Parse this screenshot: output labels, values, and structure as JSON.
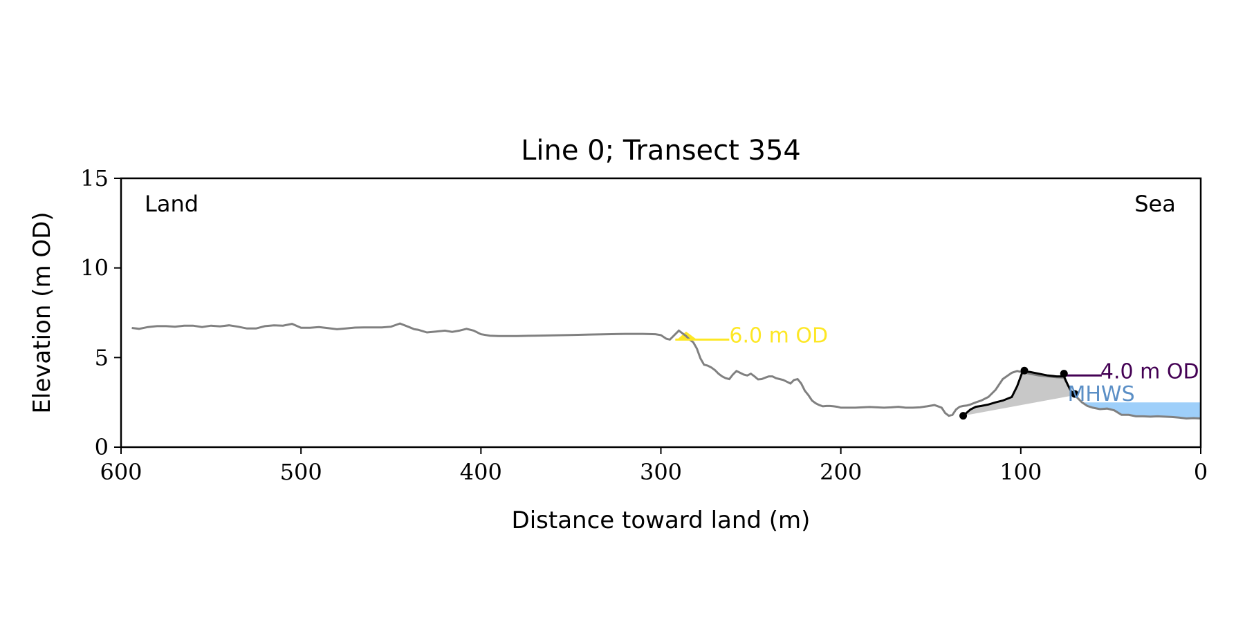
{
  "chart_data": {
    "type": "line",
    "title": "Line 0; Transect 354",
    "xlabel": "Distance toward land (m)",
    "ylabel": "Elevation (m OD)",
    "xlim": [
      600,
      0
    ],
    "ylim": [
      0,
      15
    ],
    "x_ticks": [
      600,
      500,
      400,
      300,
      200,
      100,
      0
    ],
    "y_ticks": [
      0,
      5,
      10,
      15
    ],
    "grid": false,
    "corner_labels": {
      "left": "Land",
      "right": "Sea"
    },
    "colors": {
      "profile": "#808080",
      "dune": "#000000",
      "dune_fill": "#c8c8c8",
      "upper_level": "#fde725",
      "lower_level": "#440154",
      "mhws": "#5b8fc6",
      "water": "#9ecffa"
    },
    "series": [
      {
        "kind": "profile",
        "x": [
          594,
          590,
          585,
          580,
          575,
          570,
          565,
          560,
          555,
          550,
          545,
          540,
          535,
          530,
          525,
          520,
          515,
          510,
          505,
          500,
          495,
          490,
          485,
          480,
          475,
          470,
          465,
          460,
          455,
          450,
          445,
          440,
          437,
          435,
          430,
          425,
          420,
          416,
          412,
          408,
          404,
          400,
          395,
          390,
          380,
          370,
          360,
          350,
          340,
          330,
          320,
          310,
          303,
          300,
          297,
          295,
          292,
          290,
          288,
          286,
          284,
          282,
          280,
          278,
          276,
          274,
          272,
          270,
          268,
          266,
          264,
          262,
          260,
          258,
          256,
          254,
          252,
          250,
          248,
          246,
          244,
          242,
          240,
          238,
          236,
          234,
          232,
          230,
          228,
          226,
          224,
          222,
          220,
          218,
          216,
          214,
          212,
          210,
          208,
          206,
          204,
          202,
          200,
          196,
          192,
          188,
          184,
          180,
          176,
          172,
          168,
          164,
          160,
          156,
          152,
          148,
          144,
          142,
          140,
          138,
          136,
          134,
          132,
          130,
          128,
          125,
          122,
          118,
          114,
          110,
          105,
          102,
          100,
          95,
          90,
          85,
          80,
          76,
          72,
          70,
          66,
          63,
          60,
          56,
          52,
          48,
          44,
          40,
          36,
          32,
          28,
          24,
          20,
          16,
          12,
          8,
          4,
          0
        ],
        "y": [
          6.65,
          6.6,
          6.7,
          6.75,
          6.75,
          6.72,
          6.78,
          6.78,
          6.7,
          6.78,
          6.74,
          6.8,
          6.72,
          6.62,
          6.62,
          6.75,
          6.8,
          6.78,
          6.88,
          6.66,
          6.66,
          6.7,
          6.64,
          6.58,
          6.62,
          6.67,
          6.68,
          6.68,
          6.68,
          6.72,
          6.9,
          6.7,
          6.58,
          6.55,
          6.4,
          6.45,
          6.5,
          6.43,
          6.5,
          6.6,
          6.5,
          6.3,
          6.22,
          6.2,
          6.2,
          6.22,
          6.24,
          6.26,
          6.28,
          6.3,
          6.32,
          6.32,
          6.3,
          6.25,
          6.05,
          6.0,
          6.3,
          6.5,
          6.35,
          6.2,
          6.0,
          5.85,
          5.5,
          4.95,
          4.6,
          4.55,
          4.45,
          4.3,
          4.1,
          3.95,
          3.85,
          3.8,
          4.05,
          4.25,
          4.15,
          4.05,
          4.0,
          4.1,
          3.95,
          3.78,
          3.8,
          3.88,
          3.95,
          3.95,
          3.85,
          3.8,
          3.75,
          3.65,
          3.55,
          3.75,
          3.8,
          3.55,
          3.15,
          2.9,
          2.6,
          2.45,
          2.35,
          2.28,
          2.3,
          2.3,
          2.28,
          2.25,
          2.2,
          2.2,
          2.2,
          2.22,
          2.24,
          2.22,
          2.2,
          2.22,
          2.25,
          2.2,
          2.2,
          2.22,
          2.28,
          2.35,
          2.2,
          1.9,
          1.75,
          1.8,
          2.1,
          2.25,
          2.3,
          2.32,
          2.38,
          2.5,
          2.6,
          2.8,
          3.2,
          3.8,
          4.15,
          4.25,
          4.2,
          4.1,
          4.0,
          3.95,
          3.9,
          3.88,
          3.1,
          2.9,
          2.5,
          2.3,
          2.2,
          2.12,
          2.15,
          2.05,
          1.8,
          1.8,
          1.72,
          1.72,
          1.7,
          1.72,
          1.7,
          1.68,
          1.65,
          1.6,
          1.62,
          1.6
        ]
      },
      {
        "kind": "dune",
        "x": [
          132,
          128,
          125,
          122,
          118,
          114,
          110,
          105,
          102,
          99,
          95,
          90,
          85,
          80,
          76,
          74,
          72,
          70
        ],
        "y": [
          1.75,
          2.1,
          2.25,
          2.3,
          2.38,
          2.5,
          2.6,
          2.8,
          3.4,
          4.22,
          4.2,
          4.1,
          4.0,
          3.95,
          3.95,
          3.5,
          3.1,
          2.9
        ]
      }
    ],
    "dune_points": {
      "x": [
        132,
        98,
        76,
        70
      ],
      "y": [
        1.75,
        4.27,
        4.1,
        2.97
      ]
    },
    "levels": [
      {
        "label": "6.0 m OD",
        "value": 6.0,
        "x_range": [
          292,
          262
        ],
        "style": "upper_level"
      },
      {
        "label": "4.0 m OD",
        "value": 4.0,
        "x_range": [
          76,
          55
        ],
        "style": "lower_level"
      }
    ],
    "mhws": {
      "label": "MHWS",
      "value": 2.5
    }
  }
}
